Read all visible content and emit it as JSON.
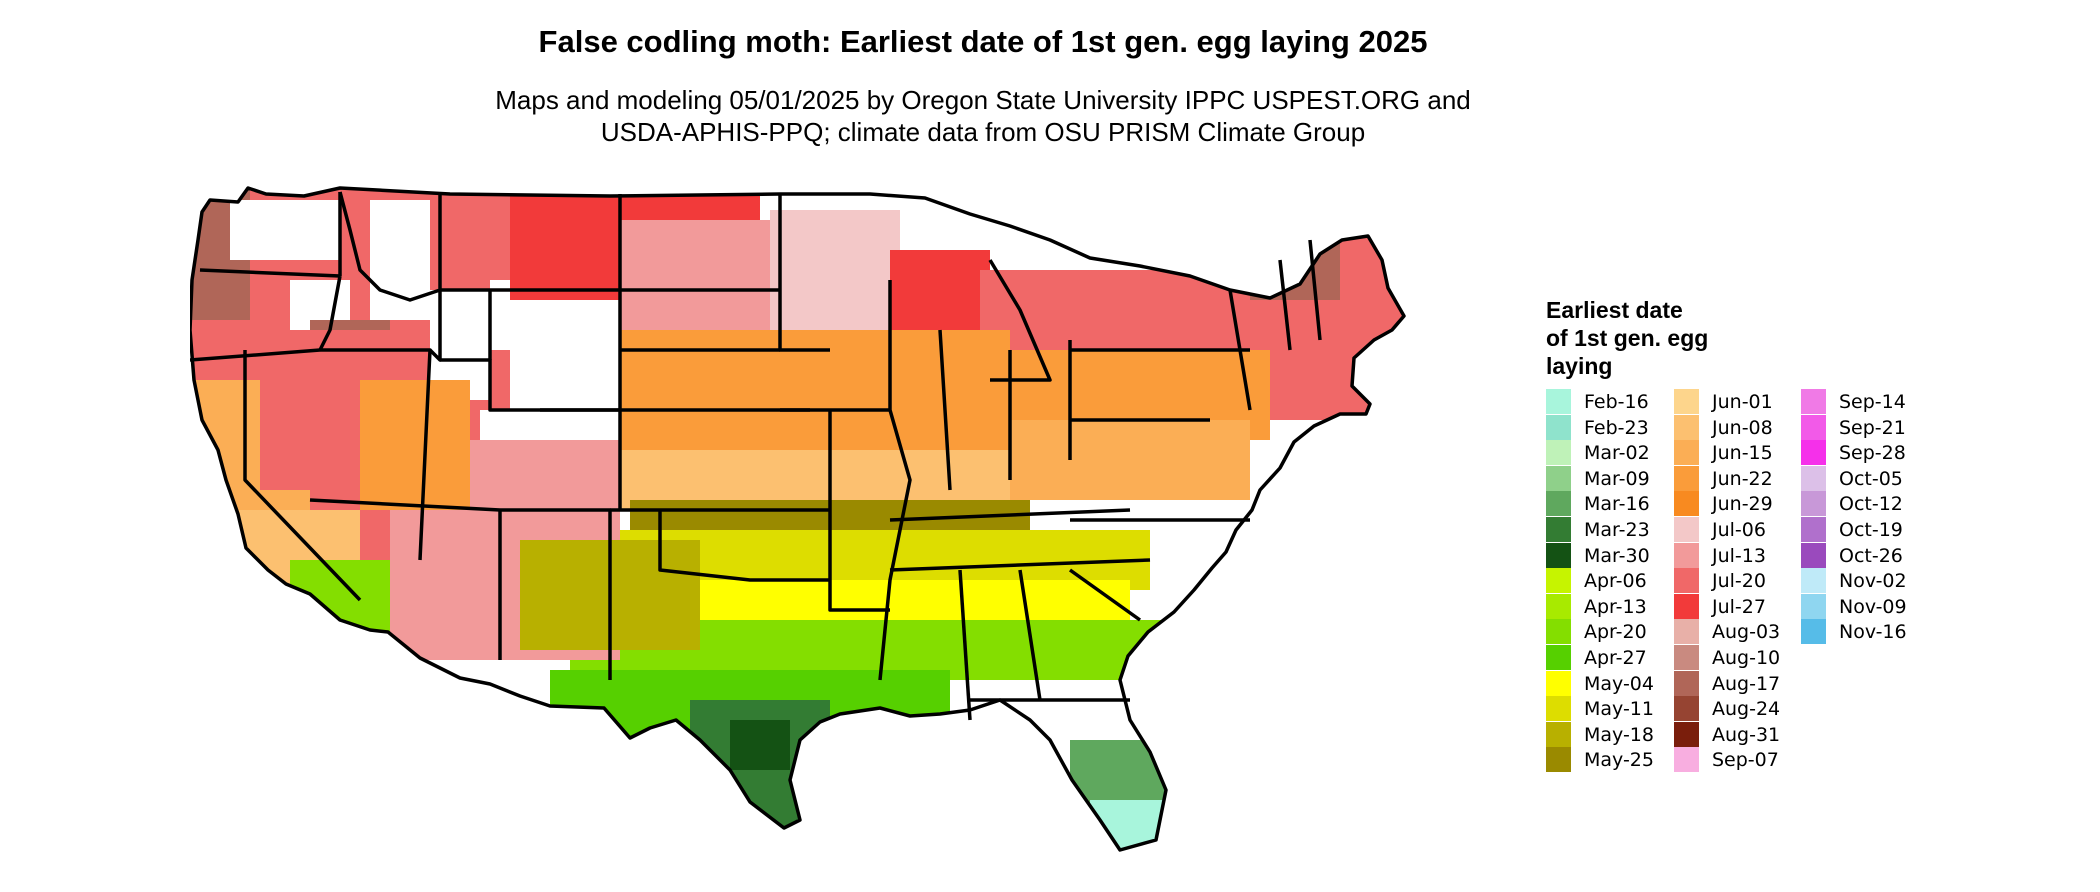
{
  "title": "False codling moth: Earliest date of 1st gen. egg laying 2025",
  "subtitle": {
    "line1": "Maps and modeling 05/01/2025 by Oregon State University IPPC USPEST.ORG and",
    "line2": "USDA-APHIS-PPQ; climate data from OSU PRISM Climate Group"
  },
  "legend": {
    "title_lines": [
      "Earliest date",
      "of 1st gen. egg",
      "laying"
    ],
    "columns": [
      [
        {
          "label": "Feb-16",
          "color": "#a8f5dc"
        },
        {
          "label": "Feb-23",
          "color": "#8fe3cc"
        },
        {
          "label": "Mar-02",
          "color": "#bff2b8"
        },
        {
          "label": "Mar-09",
          "color": "#8fd08a"
        },
        {
          "label": "Mar-16",
          "color": "#5fa85e"
        },
        {
          "label": "Mar-23",
          "color": "#337c33"
        },
        {
          "label": "Mar-30",
          "color": "#145214"
        },
        {
          "label": "Apr-06",
          "color": "#c6f400"
        },
        {
          "label": "Apr-13",
          "color": "#a8ea00"
        },
        {
          "label": "Apr-20",
          "color": "#84de00"
        },
        {
          "label": "Apr-27",
          "color": "#56d000"
        },
        {
          "label": "May-04",
          "color": "#ffff00"
        },
        {
          "label": "May-11",
          "color": "#dddd00"
        },
        {
          "label": "May-18",
          "color": "#b8b000"
        },
        {
          "label": "May-25",
          "color": "#9a8a00"
        }
      ],
      [
        {
          "label": "Jun-01",
          "color": "#fdd58c"
        },
        {
          "label": "Jun-08",
          "color": "#fcc070"
        },
        {
          "label": "Jun-15",
          "color": "#fbae55"
        },
        {
          "label": "Jun-22",
          "color": "#fa9c3a"
        },
        {
          "label": "Jun-29",
          "color": "#f88a20"
        },
        {
          "label": "Jul-06",
          "color": "#f3c8c8"
        },
        {
          "label": "Jul-13",
          "color": "#f29a9a"
        },
        {
          "label": "Jul-20",
          "color": "#f06868"
        },
        {
          "label": "Jul-27",
          "color": "#f23a3a"
        },
        {
          "label": "Aug-03",
          "color": "#e8b0a8"
        },
        {
          "label": "Aug-10",
          "color": "#c98a80"
        },
        {
          "label": "Aug-17",
          "color": "#b06658"
        },
        {
          "label": "Aug-24",
          "color": "#964432"
        },
        {
          "label": "Aug-31",
          "color": "#7a1e0c"
        },
        {
          "label": "Sep-07",
          "color": "#f8aee0"
        }
      ],
      [
        {
          "label": "Sep-14",
          "color": "#f07ae6"
        },
        {
          "label": "Sep-21",
          "color": "#f25ae8"
        },
        {
          "label": "Sep-28",
          "color": "#f530ea"
        },
        {
          "label": "Oct-05",
          "color": "#dcc0e8"
        },
        {
          "label": "Oct-12",
          "color": "#c898d8"
        },
        {
          "label": "Oct-19",
          "color": "#b070cc"
        },
        {
          "label": "Oct-26",
          "color": "#9a4abd"
        },
        {
          "label": "Nov-02",
          "color": "#bfeaf8"
        },
        {
          "label": "Nov-09",
          "color": "#8fd6f0"
        },
        {
          "label": "Nov-16",
          "color": "#56bce8"
        }
      ]
    ]
  },
  "map": {
    "regions": [
      {
        "name": "northwest",
        "color": "#f06868"
      },
      {
        "name": "northwest-mountains",
        "color": "#b06658"
      },
      {
        "name": "snow-white",
        "color": "#ffffff"
      },
      {
        "name": "northern-plains",
        "color": "#f23a3a"
      },
      {
        "name": "central-plains",
        "color": "#f29a9a"
      },
      {
        "name": "minnesota",
        "color": "#f3c8c8"
      },
      {
        "name": "great-lakes",
        "color": "#f23a3a"
      },
      {
        "name": "northeast",
        "color": "#f06868"
      },
      {
        "name": "new-england-mountains",
        "color": "#b06658"
      },
      {
        "name": "corn-belt",
        "color": "#fa9c3a"
      },
      {
        "name": "mid-south",
        "color": "#fcc070"
      },
      {
        "name": "appalachia",
        "color": "#fbae55"
      },
      {
        "name": "tn-valley",
        "color": "#9a8a00"
      },
      {
        "name": "south",
        "color": "#dddd00"
      },
      {
        "name": "deep-south",
        "color": "#ffff00"
      },
      {
        "name": "gulf-coast",
        "color": "#84de00"
      },
      {
        "name": "gulf-inner",
        "color": "#56d000"
      },
      {
        "name": "south-texas",
        "color": "#337c33"
      },
      {
        "name": "rio-grande",
        "color": "#145214"
      },
      {
        "name": "south-florida",
        "color": "#5fa85e"
      },
      {
        "name": "florida-tip",
        "color": "#a8f5dc"
      },
      {
        "name": "california-valley",
        "color": "#fbae55"
      },
      {
        "name": "socal",
        "color": "#fcc070"
      },
      {
        "name": "sw-desert",
        "color": "#84de00"
      },
      {
        "name": "nm-az-highlands",
        "color": "#f29a9a"
      },
      {
        "name": "great-basin",
        "color": "#f06868"
      },
      {
        "name": "colorado-plateau",
        "color": "#fa9c3a"
      },
      {
        "name": "texas-hills",
        "color": "#b8b000"
      }
    ]
  }
}
